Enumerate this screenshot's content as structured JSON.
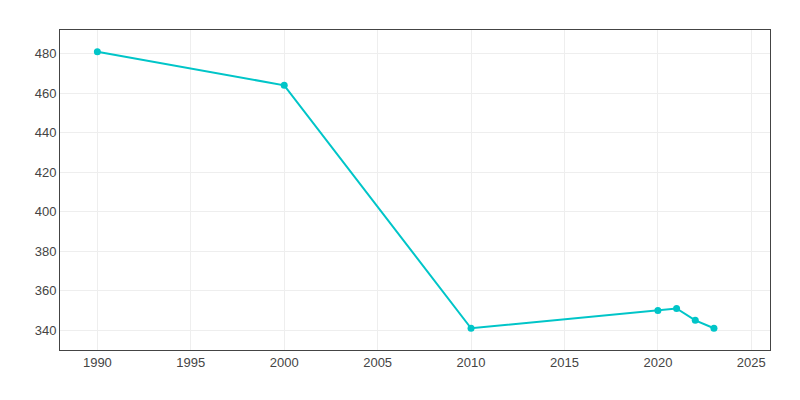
{
  "chart_data": {
    "type": "line",
    "x": [
      1990,
      2000,
      2010,
      2020,
      2021,
      2022,
      2023
    ],
    "values": [
      481,
      464,
      341,
      350,
      351,
      345,
      341
    ],
    "color": "#00C5C8",
    "marker": "circle",
    "xlim": [
      1988,
      2026
    ],
    "ylim": [
      330,
      492
    ],
    "xticks": [
      1990,
      1995,
      2000,
      2005,
      2010,
      2015,
      2020,
      2025
    ],
    "yticks": [
      340,
      360,
      380,
      400,
      420,
      440,
      460,
      480
    ],
    "grid": true
  }
}
